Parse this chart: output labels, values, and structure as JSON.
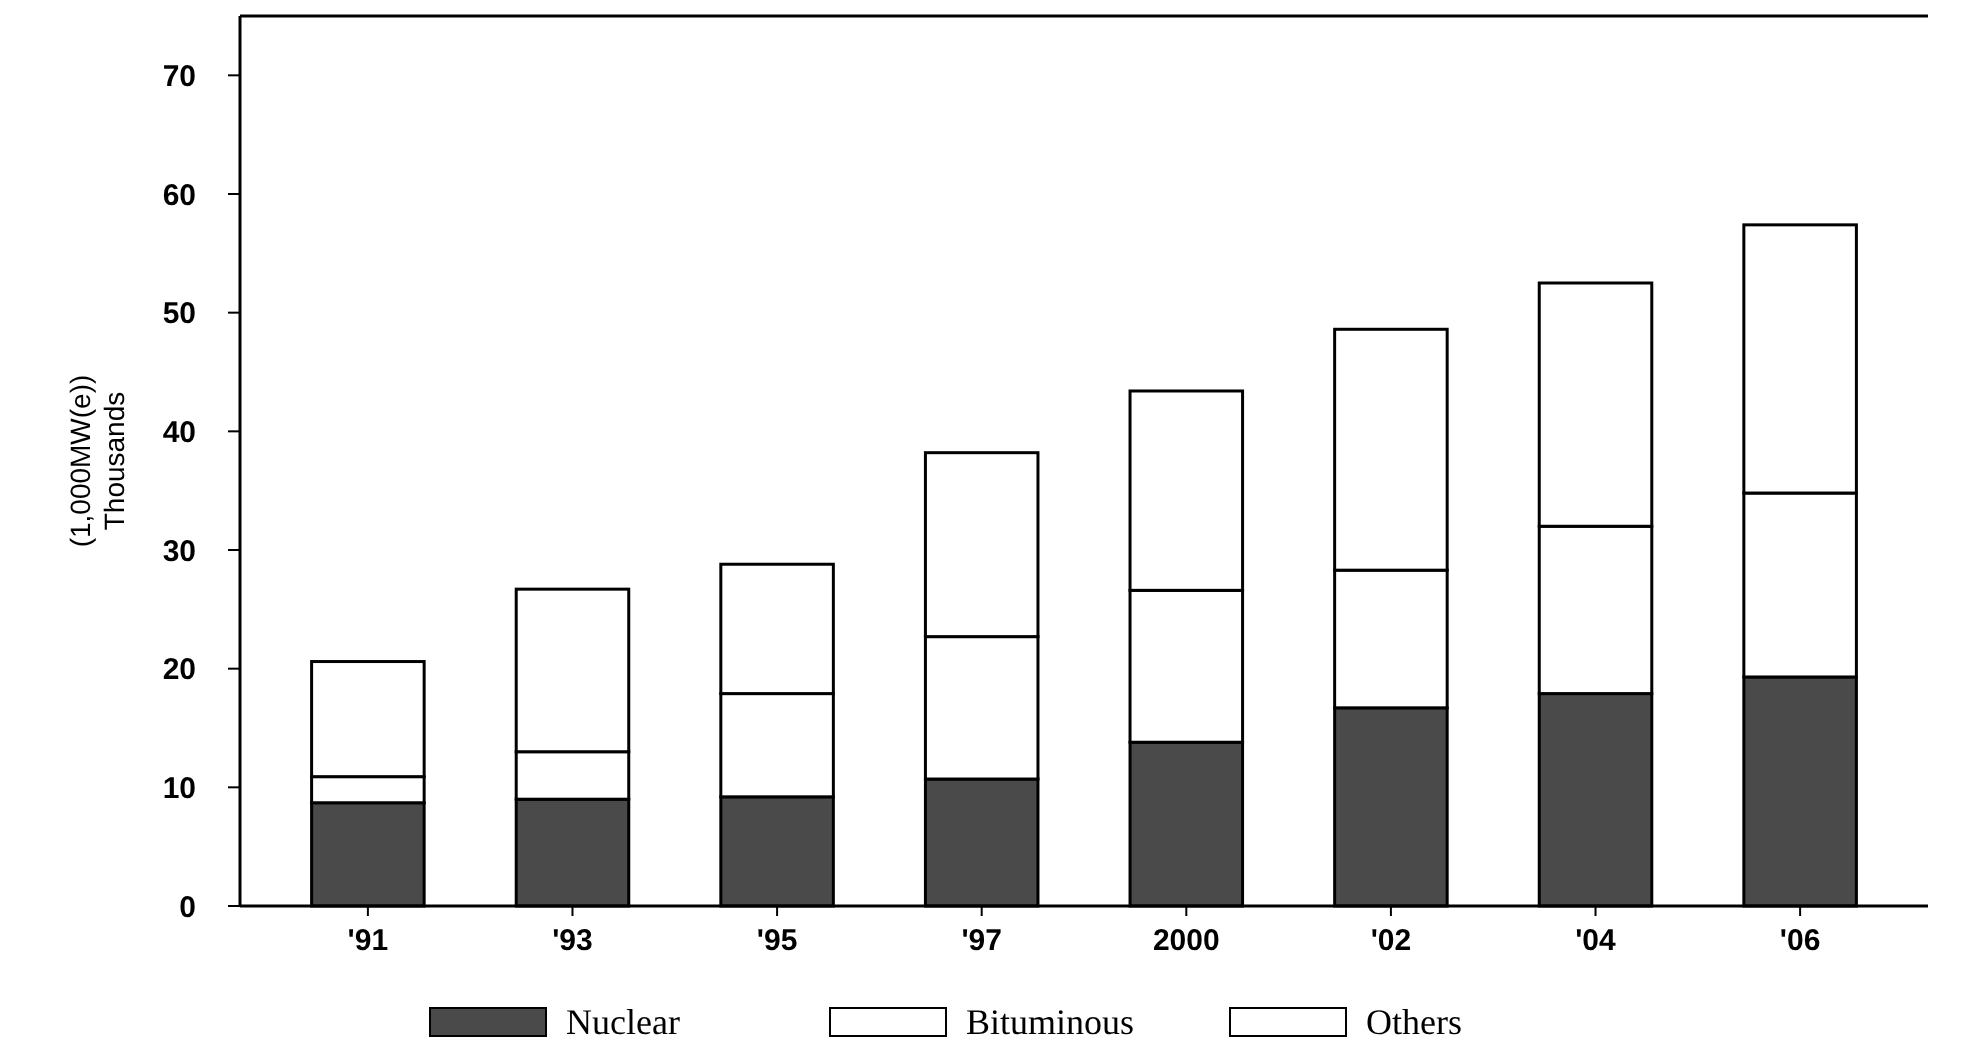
{
  "chart_data": {
    "type": "bar",
    "stacked": true,
    "ylabel": "(1,000MW(e))\nThousands",
    "categories": [
      "'91",
      "'93",
      "'95",
      "'97",
      "2000",
      "'02",
      "'04",
      "'06"
    ],
    "series": [
      {
        "name": "Nuclear",
        "color": "#4a4a4a",
        "values": [
          8.7,
          9.0,
          9.2,
          10.7,
          13.8,
          16.7,
          17.9,
          19.3
        ]
      },
      {
        "name": "Bituminous",
        "color": "#ffffff",
        "values": [
          2.2,
          4.0,
          8.7,
          12.0,
          12.8,
          11.6,
          14.1,
          15.5
        ]
      },
      {
        "name": "Others",
        "color": "#ffffff",
        "values": [
          9.7,
          13.7,
          10.9,
          15.5,
          16.8,
          20.3,
          20.5,
          22.6
        ]
      }
    ],
    "ylim": [
      0,
      75
    ],
    "yticks": [
      0,
      10,
      20,
      30,
      40,
      50,
      60,
      70
    ],
    "grid": false,
    "legend": "bottom"
  }
}
